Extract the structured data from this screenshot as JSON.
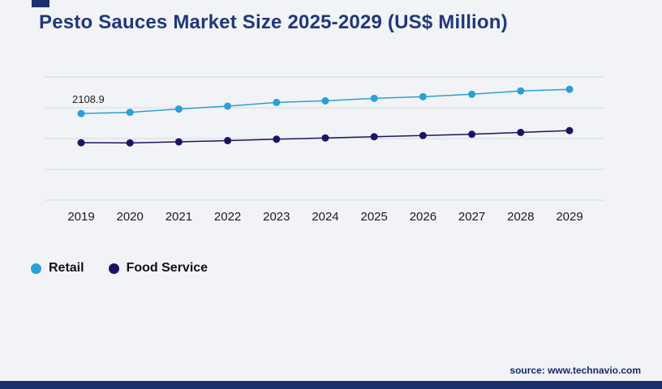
{
  "page": {
    "title": "Pesto Sauces Market Size 2025-2029 (US$ Million)",
    "source": "source: www.technavio.com"
  },
  "colors": {
    "background": "#f1f3f6",
    "accent_bar": "#1c2e6e",
    "title": "#21377c",
    "gridline": "#d8dbe0",
    "retail": "#2b9fd7",
    "food_service": "#1b1464"
  },
  "legend": [
    {
      "label": "Retail",
      "color": "#2b9fd7"
    },
    {
      "label": "Food Service",
      "color": "#1b1464"
    }
  ],
  "chart_data": {
    "type": "line",
    "title": "Pesto Sauces Market Size 2025-2029 (US$ Million)",
    "xlabel": "",
    "ylabel": "",
    "categories": [
      "2019",
      "2020",
      "2021",
      "2022",
      "2023",
      "2024",
      "2025",
      "2026",
      "2027",
      "2028",
      "2029"
    ],
    "series": [
      {
        "name": "Retail",
        "color": "#2b9fd7",
        "values": [
          2108.9,
          2140,
          2220,
          2290,
          2380,
          2420,
          2480,
          2520,
          2580,
          2660,
          2700
        ]
      },
      {
        "name": "Food Service",
        "color": "#1b1464",
        "values": [
          1400,
          1395,
          1420,
          1450,
          1485,
          1515,
          1545,
          1575,
          1605,
          1650,
          1695
        ]
      }
    ],
    "ylim": [
      0,
      3000
    ],
    "grid": true,
    "gridline_count": 5,
    "legend_position": "bottom-left",
    "annotations": [
      {
        "text": "2108.9",
        "series": "Retail",
        "index": 0
      }
    ]
  }
}
